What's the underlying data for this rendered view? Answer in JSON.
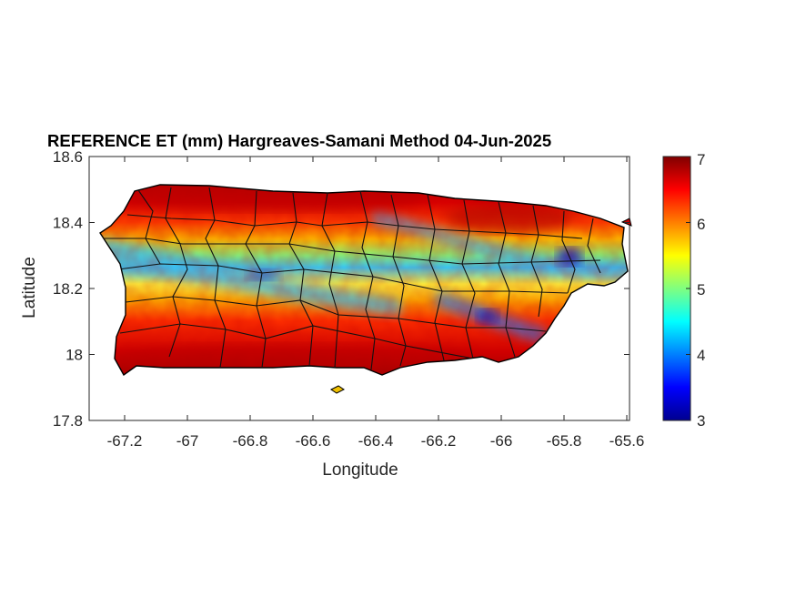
{
  "title": "REFERENCE ET (mm) Hargreaves-Samani Method  04-Jun-2025",
  "xlabel": "Longitude",
  "ylabel": "Latitude",
  "chart_data": {
    "type": "heatmap",
    "title": "REFERENCE ET (mm) Hargreaves-Samani Method  04-Jun-2025",
    "xlabel": "Longitude",
    "ylabel": "Latitude",
    "xlim": [
      -67.3,
      -65.58
    ],
    "ylim": [
      17.8,
      18.6
    ],
    "xticks": [
      -67.2,
      -67,
      -66.8,
      -66.6,
      -66.4,
      -66.2,
      -66,
      -65.8,
      -65.6
    ],
    "xtick_labels": [
      "-67.2",
      "-67",
      "-66.8",
      "-66.6",
      "-66.4",
      "-66.2",
      "-66",
      "-65.8",
      "-65.6"
    ],
    "yticks": [
      18.6,
      18.4,
      18.2,
      18,
      17.8
    ],
    "ytick_labels": [
      "18.6",
      "18.4",
      "18.2",
      "18",
      "17.8"
    ],
    "colorbar": {
      "colormap": "jet",
      "range": [
        3,
        7
      ],
      "ticks": [
        7,
        6,
        5,
        4,
        3
      ],
      "tick_labels": [
        "7",
        "6",
        "5",
        "4",
        "3"
      ]
    },
    "grid": false,
    "region": "Puerto Rico (municipality boundaries)",
    "pattern": "Low ET (3.5-5 mm) bands across the west-central interior and near -66.0 longitude; highest ET (6.5-7 mm) on the north coast and south coast"
  }
}
